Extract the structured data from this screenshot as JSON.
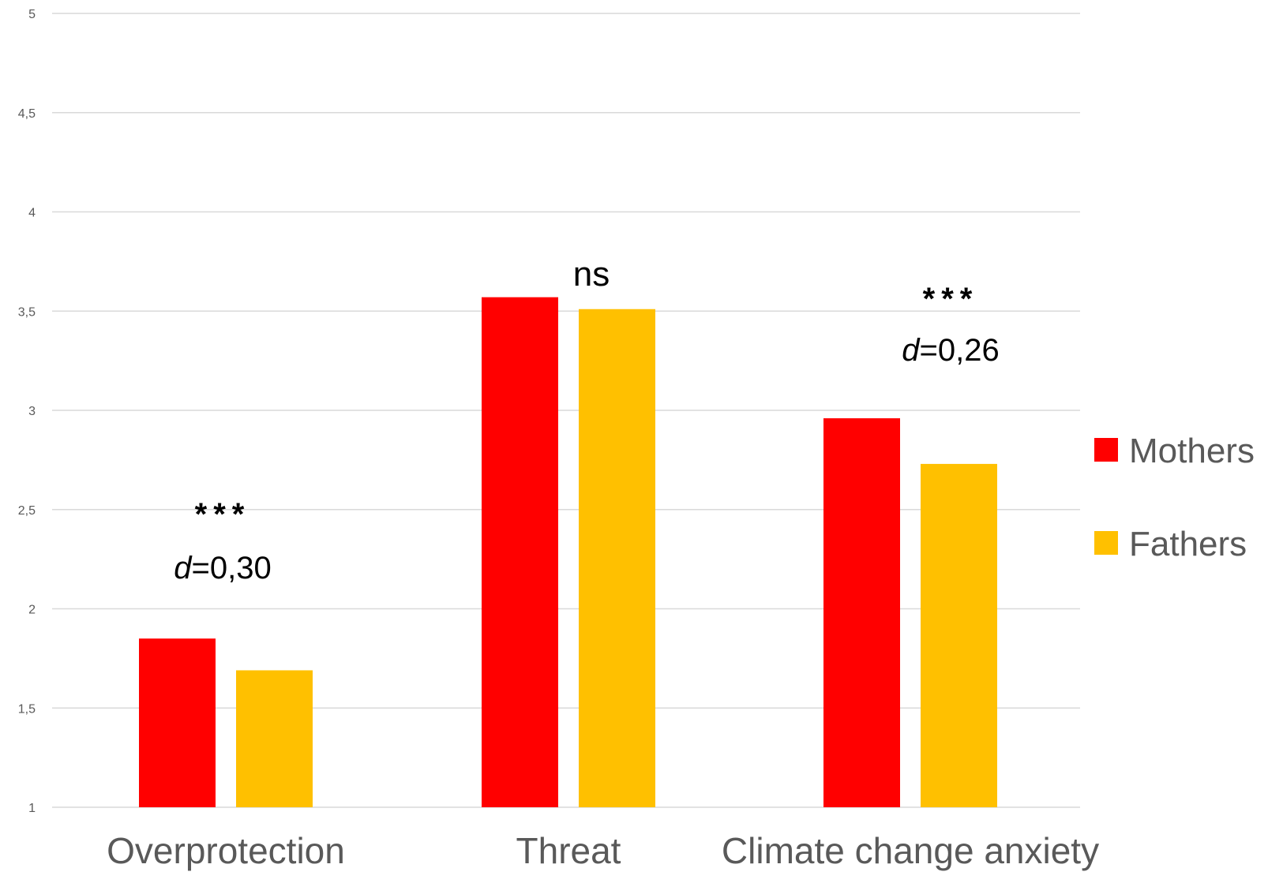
{
  "colors": {
    "mothers": "#ff0000",
    "fathers": "#ffc000",
    "grid": "#d9d9d9",
    "axis_text": "#595959",
    "annotation": "#000000"
  },
  "chart_data": {
    "type": "bar",
    "title": "",
    "xlabel": "",
    "ylabel": "",
    "categories": [
      "Overprotection",
      "Threat",
      "Climate change anxiety"
    ],
    "series": [
      {
        "name": "Mothers",
        "values": [
          1.85,
          3.57,
          2.96
        ]
      },
      {
        "name": "Fathers",
        "values": [
          1.69,
          3.51,
          2.73
        ]
      }
    ],
    "ylim": [
      1,
      5
    ],
    "yticks": [
      "1",
      "1,5",
      "2",
      "2,5",
      "3",
      "3,5",
      "4",
      "4,5",
      "5"
    ],
    "ytick_values": [
      1,
      1.5,
      2,
      2.5,
      3,
      3.5,
      4,
      4.5,
      5
    ],
    "grid": true,
    "legend_position": "right",
    "annotations": [
      {
        "category": "Overprotection",
        "significance": "***",
        "effect_prefix": "d",
        "effect_value": "=0,30"
      },
      {
        "category": "Threat",
        "significance": "ns",
        "effect_prefix": "",
        "effect_value": ""
      },
      {
        "category": "Climate change anxiety",
        "significance": "***",
        "effect_prefix": "d",
        "effect_value": "=0,26"
      }
    ]
  }
}
